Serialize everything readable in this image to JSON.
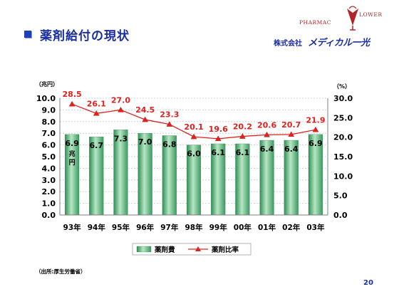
{
  "slide": {
    "title": "薬剤給付の現状",
    "source": "（出所:厚生労働省）",
    "page_number": "20"
  },
  "logo": {
    "brand_left": "PHARMAC",
    "brand_right": "LOWER",
    "company_prefix": "株式会社",
    "company_name": "メディカル一光",
    "accent_color": "#b0262a"
  },
  "chart_data": {
    "type": "bar",
    "categories": [
      "93年",
      "94年",
      "95年",
      "96年",
      "97年",
      "98年",
      "99年",
      "00年",
      "01年",
      "02年",
      "03年"
    ],
    "series": [
      {
        "name": "薬剤費",
        "type": "bar",
        "axis": "left",
        "values": [
          6.9,
          6.7,
          7.3,
          7.0,
          6.8,
          6.0,
          6.1,
          6.1,
          6.4,
          6.4,
          6.9
        ],
        "labels": [
          "6.9",
          "6.7",
          "7.3",
          "7.0",
          "6.8",
          "6.0",
          "6.1",
          "6.1",
          "6.4",
          "6.4",
          "6.9"
        ],
        "color": "#4caa6e"
      },
      {
        "name": "薬剤比率",
        "type": "line",
        "axis": "right",
        "values": [
          28.5,
          26.1,
          27.0,
          24.5,
          23.3,
          20.1,
          19.6,
          20.2,
          20.6,
          20.7,
          21.9
        ],
        "labels": [
          "28.5",
          "26.1",
          "27.0",
          "24.5",
          "23.3",
          "20.1",
          "19.6",
          "20.2",
          "20.6",
          "20.7",
          "21.9"
        ],
        "color": "#e0211d"
      }
    ],
    "left_axis": {
      "unit": "（兆円）",
      "min": 0,
      "max": 10,
      "step": 1,
      "ticks": [
        "0.0",
        "1.0",
        "2.0",
        "3.0",
        "4.0",
        "5.0",
        "6.0",
        "7.0",
        "8.0",
        "9.0",
        "10.0"
      ]
    },
    "right_axis": {
      "unit": "（%）",
      "min": 0,
      "max": 30,
      "step": 5,
      "ticks": [
        "0.0",
        "5.0",
        "10.0",
        "15.0",
        "20.0",
        "25.0",
        "30.0"
      ]
    },
    "bar_inline_unit": [
      "兆",
      "円"
    ],
    "grid": true,
    "legend_position": "bottom"
  }
}
